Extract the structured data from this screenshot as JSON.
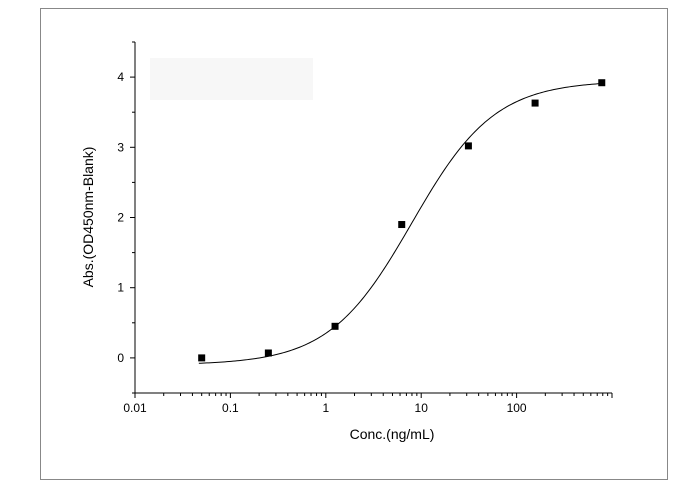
{
  "chart_data": {
    "type": "scatter",
    "title": "",
    "xlabel": "Conc.(ng/mL)",
    "ylabel": "Abs.(OD450nm-Blank)",
    "x_scale": "log",
    "xlim": [
      0.01,
      1000
    ],
    "ylim": [
      -0.5,
      4.5
    ],
    "x_ticks": [
      0.01,
      0.1,
      1,
      10,
      100
    ],
    "x_tick_labels": [
      "0.01",
      "0.1",
      "1",
      "10",
      "100"
    ],
    "y_ticks": [
      0,
      1,
      2,
      3,
      4
    ],
    "y_tick_labels": [
      "0",
      "1",
      "2",
      "3",
      "4"
    ],
    "grid": false,
    "legend": "none",
    "series": [
      {
        "marker": "square",
        "color": "#000000",
        "x": [
          0.05,
          0.25,
          1.25,
          6.25,
          31.25,
          156.25,
          781.25
        ],
        "y": [
          0.0,
          0.07,
          0.45,
          1.9,
          3.02,
          3.63,
          3.92
        ]
      }
    ],
    "fit": {
      "type": "4PL",
      "color": "#000000",
      "bottom": -0.1,
      "top": 3.95,
      "ec50": 8,
      "hill": 1.0
    }
  }
}
